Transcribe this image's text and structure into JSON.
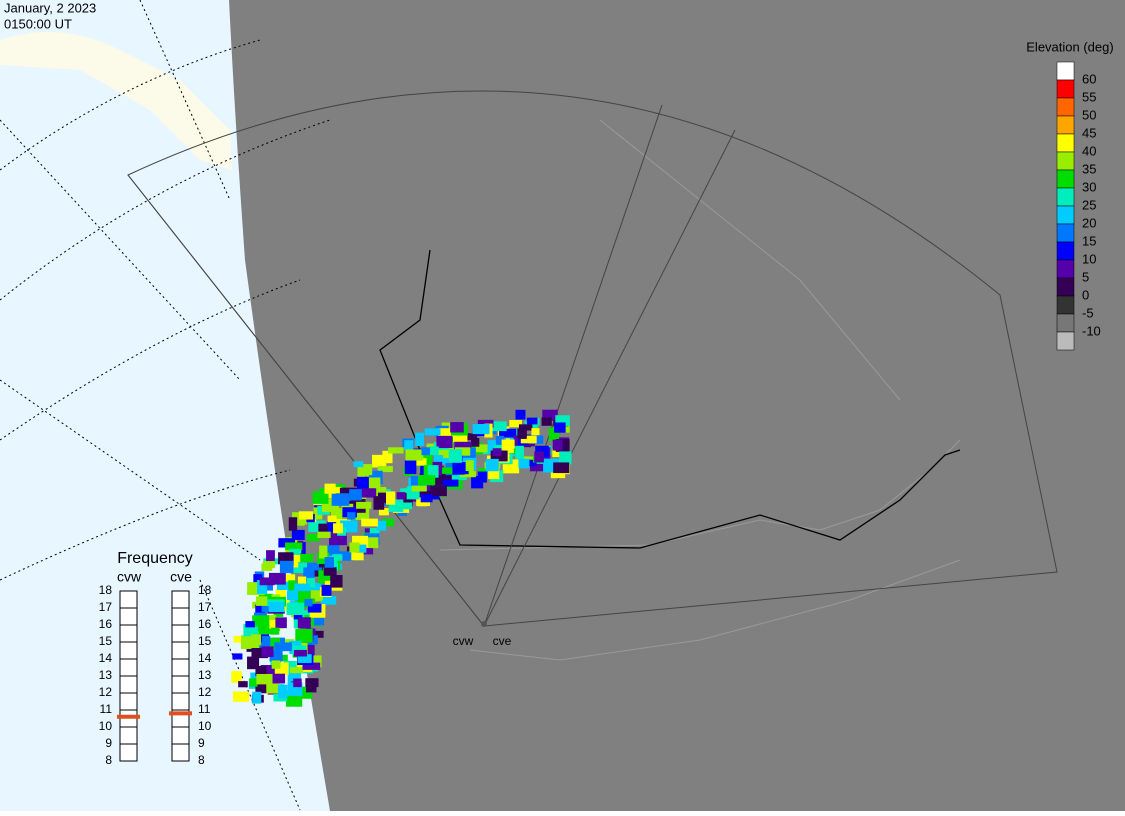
{
  "header": {
    "date": "January, 2 2023",
    "time": "0150:00 UT"
  },
  "colorbar": {
    "title": "Elevation (deg)",
    "levels": [
      60,
      55,
      50,
      45,
      40,
      35,
      30,
      25,
      20,
      15,
      10,
      5,
      0,
      -5,
      -10
    ],
    "colors": [
      "#ffffff",
      "#ff0000",
      "#ff6600",
      "#ffa500",
      "#ffff00",
      "#99ee00",
      "#00dd00",
      "#00eebb",
      "#00ccff",
      "#0077ff",
      "#0000ff",
      "#5500aa",
      "#330055",
      "#333333",
      "#777777",
      "#bbbbbb"
    ]
  },
  "frequency": {
    "title": "Frequency",
    "ticks": [
      8,
      9,
      10,
      11,
      12,
      13,
      14,
      15,
      16,
      17,
      18
    ],
    "min": 8,
    "max": 18,
    "radars": [
      {
        "name": "cvw",
        "value": 10.6
      },
      {
        "name": "cve",
        "value": 10.8
      }
    ],
    "marker_color": "#e0501e"
  },
  "map_labels": [
    "cvw",
    "cve"
  ]
}
